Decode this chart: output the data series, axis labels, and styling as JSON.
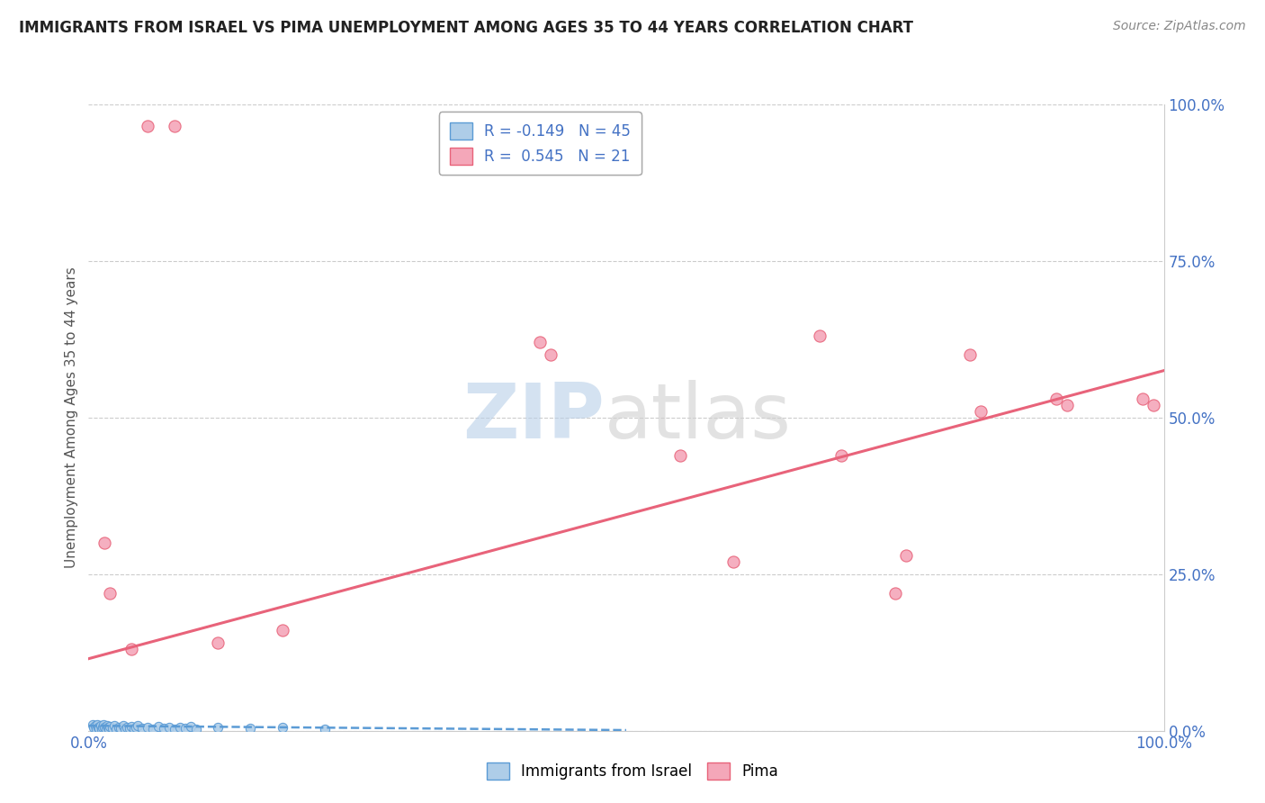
{
  "title": "IMMIGRANTS FROM ISRAEL VS PIMA UNEMPLOYMENT AMONG AGES 35 TO 44 YEARS CORRELATION CHART",
  "source": "Source: ZipAtlas.com",
  "ylabel": "Unemployment Among Ages 35 to 44 years",
  "xlim": [
    0,
    1.0
  ],
  "ylim": [
    0,
    1.0
  ],
  "xtick_positions": [
    0.0,
    1.0
  ],
  "xtick_labels": [
    "0.0%",
    "100.0%"
  ],
  "ytick_positions": [
    0.0,
    0.25,
    0.5,
    0.75,
    1.0
  ],
  "ytick_labels": [
    "0.0%",
    "25.0%",
    "50.0%",
    "75.0%",
    "100.0%"
  ],
  "legend_r1": "R = -0.149",
  "legend_n1": "N = 45",
  "legend_r2": "R = 0.545",
  "legend_n2": "N = 21",
  "color_blue": "#aecde8",
  "color_pink": "#f4a7b9",
  "color_blue_line": "#5b9bd5",
  "color_pink_line": "#e8637a",
  "blue_scatter": [
    [
      0.004,
      0.01
    ],
    [
      0.005,
      0.005
    ],
    [
      0.006,
      0.008
    ],
    [
      0.007,
      0.003
    ],
    [
      0.008,
      0.01
    ],
    [
      0.009,
      0.006
    ],
    [
      0.01,
      0.004
    ],
    [
      0.011,
      0.008
    ],
    [
      0.012,
      0.003
    ],
    [
      0.013,
      0.006
    ],
    [
      0.014,
      0.01
    ],
    [
      0.015,
      0.005
    ],
    [
      0.016,
      0.003
    ],
    [
      0.017,
      0.008
    ],
    [
      0.018,
      0.005
    ],
    [
      0.019,
      0.003
    ],
    [
      0.02,
      0.007
    ],
    [
      0.022,
      0.004
    ],
    [
      0.024,
      0.008
    ],
    [
      0.026,
      0.003
    ],
    [
      0.028,
      0.006
    ],
    [
      0.03,
      0.004
    ],
    [
      0.032,
      0.008
    ],
    [
      0.034,
      0.003
    ],
    [
      0.036,
      0.006
    ],
    [
      0.038,
      0.004
    ],
    [
      0.04,
      0.007
    ],
    [
      0.042,
      0.003
    ],
    [
      0.044,
      0.005
    ],
    [
      0.046,
      0.008
    ],
    [
      0.05,
      0.004
    ],
    [
      0.055,
      0.006
    ],
    [
      0.06,
      0.003
    ],
    [
      0.065,
      0.007
    ],
    [
      0.07,
      0.004
    ],
    [
      0.075,
      0.006
    ],
    [
      0.08,
      0.003
    ],
    [
      0.085,
      0.005
    ],
    [
      0.09,
      0.004
    ],
    [
      0.095,
      0.007
    ],
    [
      0.1,
      0.003
    ],
    [
      0.12,
      0.005
    ],
    [
      0.15,
      0.004
    ],
    [
      0.18,
      0.006
    ],
    [
      0.22,
      0.003
    ]
  ],
  "blue_trendline": [
    [
      0.0,
      0.008
    ],
    [
      0.5,
      0.001
    ]
  ],
  "pink_scatter": [
    [
      0.015,
      0.3
    ],
    [
      0.02,
      0.22
    ],
    [
      0.04,
      0.13
    ],
    [
      0.055,
      0.965
    ],
    [
      0.08,
      0.965
    ],
    [
      0.12,
      0.14
    ],
    [
      0.18,
      0.16
    ],
    [
      0.42,
      0.62
    ],
    [
      0.43,
      0.6
    ],
    [
      0.55,
      0.44
    ],
    [
      0.6,
      0.27
    ],
    [
      0.68,
      0.63
    ],
    [
      0.7,
      0.44
    ],
    [
      0.75,
      0.22
    ],
    [
      0.76,
      0.28
    ],
    [
      0.82,
      0.6
    ],
    [
      0.83,
      0.51
    ],
    [
      0.9,
      0.53
    ],
    [
      0.91,
      0.52
    ],
    [
      0.98,
      0.53
    ],
    [
      0.99,
      0.52
    ]
  ],
  "pink_trendline": [
    [
      0.0,
      0.115
    ],
    [
      1.0,
      0.575
    ]
  ]
}
